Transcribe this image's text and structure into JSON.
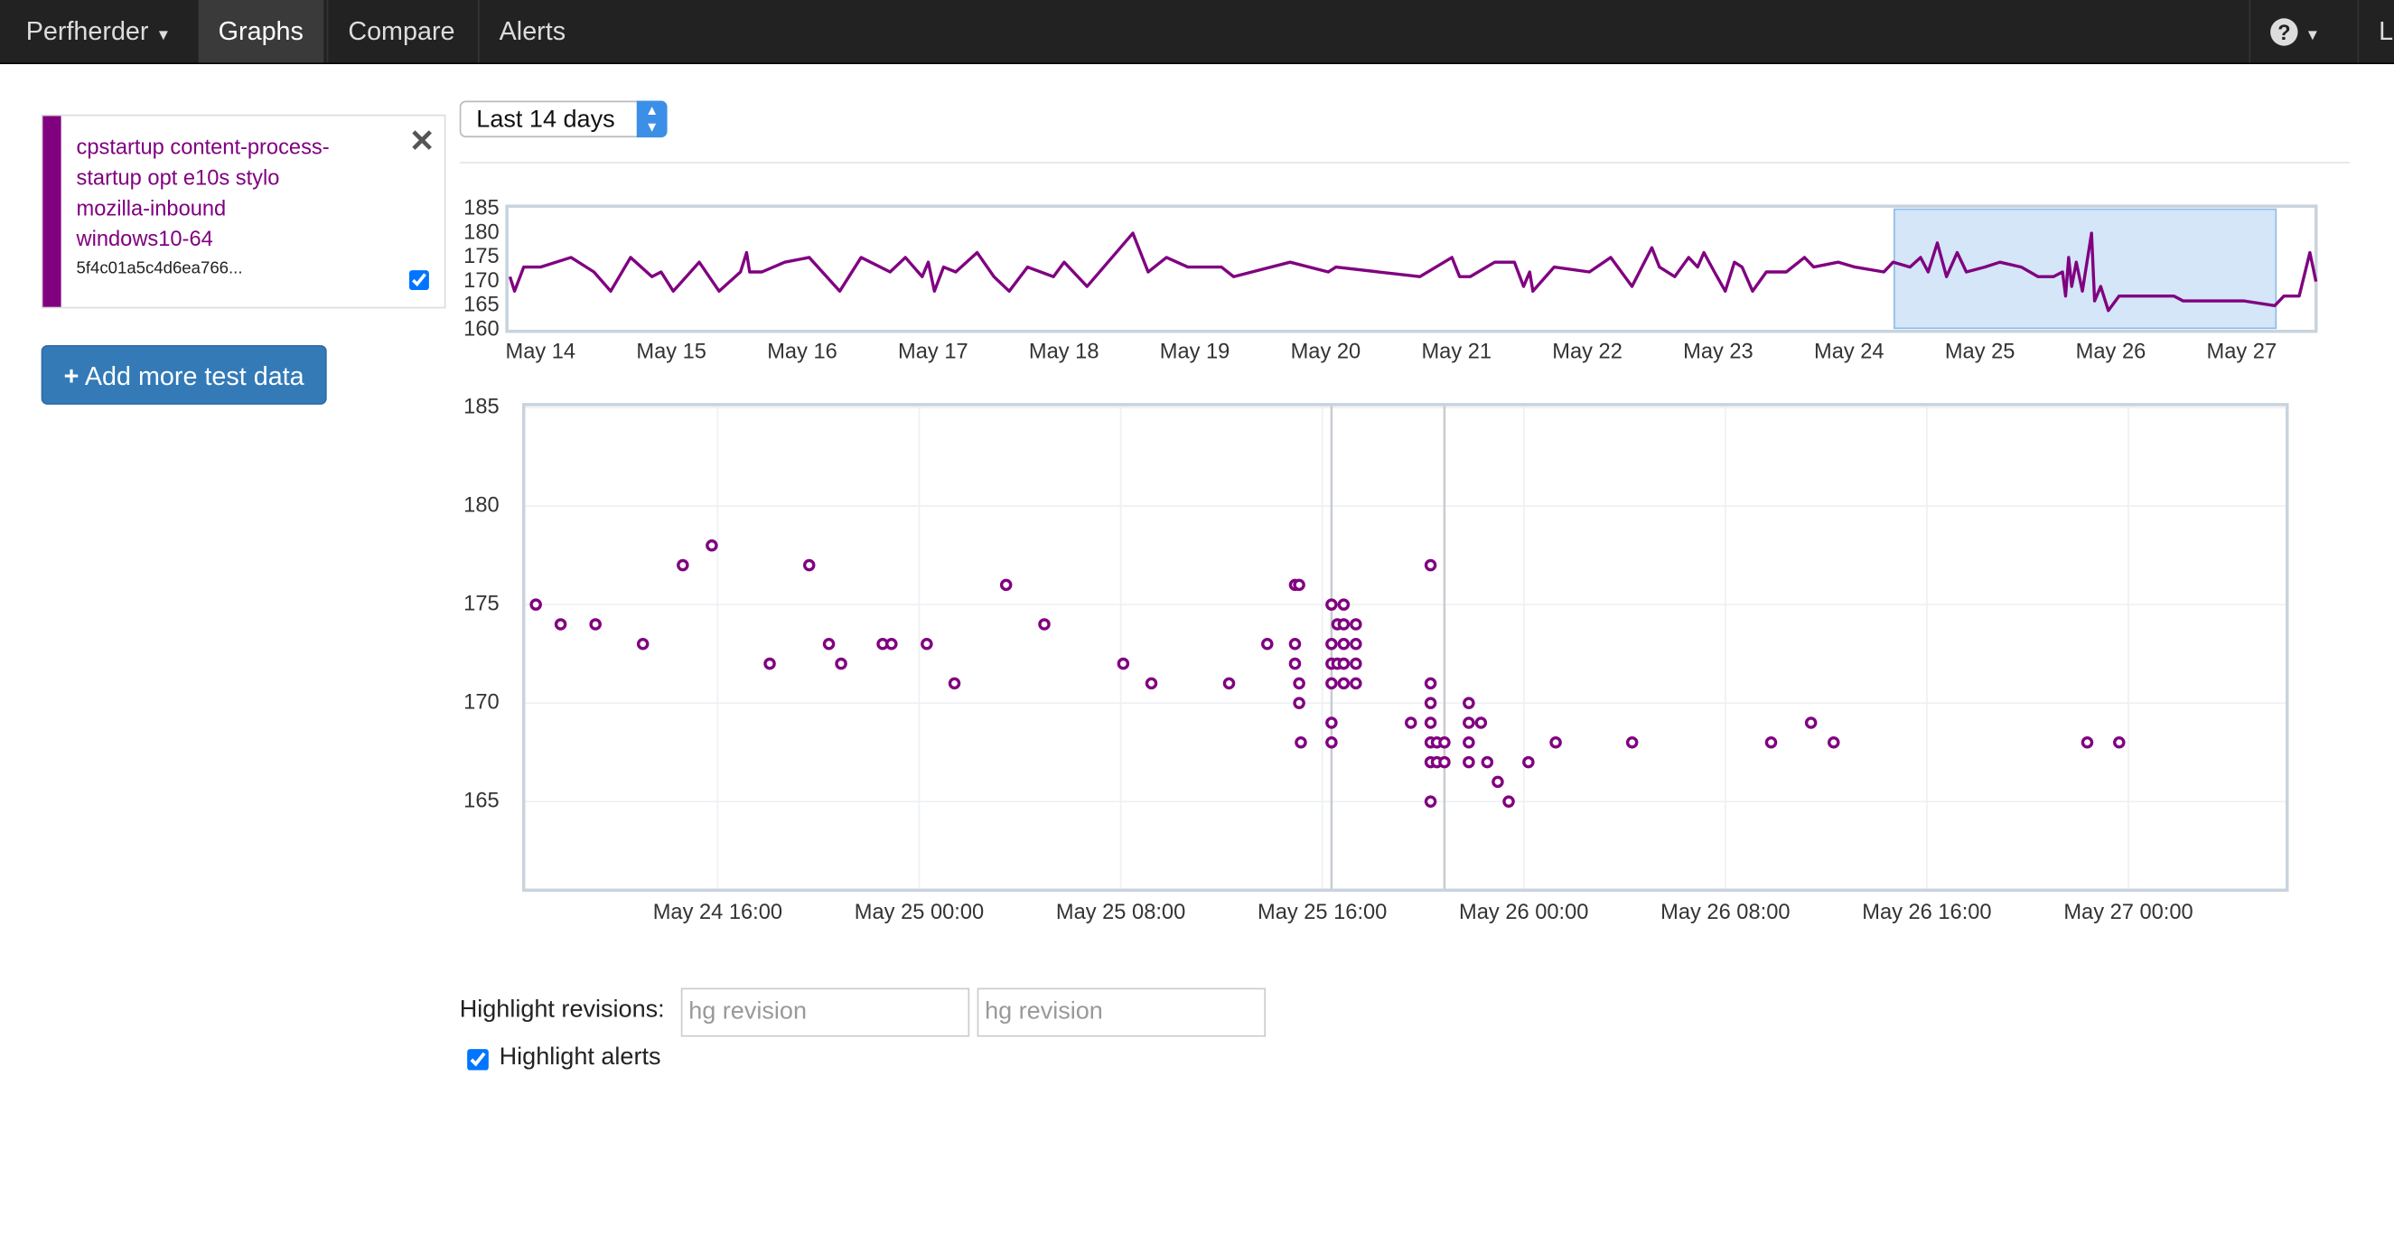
{
  "nav": {
    "brand": "Perfherder",
    "items": [
      "Graphs",
      "Compare",
      "Alerts"
    ],
    "user": "L"
  },
  "series_panel": {
    "lines": [
      "cpstartup content-process-startup opt e10s stylo",
      "mozilla-inbound",
      "windows10-64"
    ],
    "revision": "5f4c01a5c4d6ea766...",
    "visible": true
  },
  "add_button": "Add more test data",
  "time_range": "Last 14 days",
  "highlight": {
    "label": "Highlight revisions:",
    "placeholders": [
      "hg revision",
      "hg revision"
    ],
    "alerts_label": "Highlight alerts",
    "alerts_checked": true
  },
  "chart_data": [
    {
      "type": "line",
      "color": "#800080",
      "x": [
        "May 13 18:24",
        "May 13 19:14",
        "May 13 20:55",
        "May 14 00:00",
        "May 14 05:36",
        "May 14 09:48",
        "May 14 12:53",
        "May 14 16:31",
        "May 14 20:26",
        "May 14 22:07",
        "May 15 00:22",
        "May 15 05:07",
        "May 15 08:46",
        "May 15 12:41",
        "May 15 13:48",
        "May 15 14:22",
        "May 15 16:36",
        "May 15 20:48",
        "May 16 01:17",
        "May 16 06:53",
        "May 16 10:48",
        "May 16 16:07",
        "May 16 18:55",
        "May 16 22:00",
        "May 16 23:07",
        "May 17 00:14",
        "May 17 01:55",
        "May 17 04:10",
        "May 17 08:05",
        "May 17 11:10",
        "May 17 13:58",
        "May 17 17:19",
        "May 17 22:05",
        "May 18 00:02",
        "May 18 04:14",
        "May 18 12:38",
        "May 18 15:26",
        "May 18 18:48",
        "May 18 22:43",
        "May 19 04:53",
        "May 19 07:07",
        "May 19 17:29",
        "May 20 00:29",
        "May 20 01:53",
        "May 20 17:17",
        "May 20 23:10",
        "May 21 00:34",
        "May 21 02:31",
        "May 21 07:00",
        "May 21 10:38",
        "May 21 12:19",
        "May 21 13:26",
        "May 21 14:00",
        "May 21 17:55",
        "May 22 00:22",
        "May 22 04:17",
        "May 22 08:12",
        "May 22 11:50",
        "May 22 13:14",
        "May 22 16:02",
        "May 22 18:34",
        "May 22 20:14",
        "May 22 21:22",
        "May 22 23:19",
        "May 23 01:17",
        "May 23 02:58",
        "May 23 04:22",
        "May 23 06:19",
        "May 23 08:50",
        "May 23 12:29",
        "May 23 15:50",
        "May 23 17:31",
        "May 23 22:00",
        "May 24 01:05",
        "May 24 06:24",
        "May 24 08:05",
        "May 24 11:10",
        "May 24 13:07",
        "May 24 14:31",
        "May 24 16:12",
        "May 24 17:53",
        "May 24 19:50",
        "May 24 21:31",
        "May 25 00:53",
        "May 25 03:41",
        "May 25 07:36",
        "May 25 10:41",
        "May 25 13:29",
        "May 25 15:10",
        "May 25 15:43",
        "May 25 16:17",
        "May 25 16:50",
        "May 25 17:41",
        "May 25 18:48",
        "May 25 20:29",
        "May 25 21:02",
        "May 25 22:10",
        "May 25 23:34",
        "May 26 01:31",
        "May 26 11:36",
        "May 26 13:17",
        "May 27 00:29",
        "May 27 06:05",
        "May 27 07:46",
        "May 27 10:34",
        "May 27 12:31",
        "May 27 13:38"
      ],
      "values": [
        171,
        168,
        173,
        173,
        175,
        172,
        168,
        175,
        171,
        172,
        168,
        174,
        168,
        172,
        176,
        172,
        172,
        174,
        175,
        168,
        175,
        172,
        175,
        171,
        174,
        168,
        173,
        172,
        176,
        171,
        168,
        173,
        171,
        174,
        169,
        180,
        172,
        175,
        173,
        173,
        171,
        174,
        172,
        173,
        171,
        175,
        171,
        171,
        174,
        174,
        169,
        172,
        168,
        173,
        172,
        175,
        169,
        177,
        173,
        171,
        175,
        173,
        176,
        172,
        168,
        174,
        173,
        168,
        172,
        172,
        175,
        173,
        174,
        173,
        172,
        174,
        173,
        175,
        172,
        178,
        171,
        176,
        172,
        173,
        174,
        173,
        171,
        171,
        172,
        167,
        175,
        169,
        174,
        168,
        180,
        166,
        169,
        164,
        167,
        167,
        166,
        166,
        165,
        167,
        167,
        176,
        170
      ],
      "xlim": [
        "May 13 17:50",
        "May 27 13:40"
      ],
      "xticks": [
        "May 14",
        "May 15",
        "May 16",
        "May 17",
        "May 18",
        "May 19",
        "May 20",
        "May 21",
        "May 22",
        "May 23",
        "May 24",
        "May 25",
        "May 26",
        "May 27"
      ],
      "ylim": [
        159.7,
        185.6
      ],
      "yticks": [
        160,
        165,
        170,
        175,
        180,
        185
      ]
    },
    {
      "type": "scatter",
      "color": "#800080",
      "x": [
        "May 24 08:47",
        "May 24 09:46",
        "May 24 11:09",
        "May 24 13:02",
        "May 24 14:37",
        "May 24 15:46",
        "May 24 18:04",
        "May 24 19:38",
        "May 24 20:25",
        "May 24 20:54",
        "May 24 22:33",
        "May 24 22:54",
        "May 25 00:18",
        "May 25 01:24",
        "May 25 03:27",
        "May 25 04:58",
        "May 25 08:06",
        "May 25 09:13",
        "May 25 12:18",
        "May 25 13:49",
        "May 25 14:55",
        "May 25 15:05",
        "May 25 14:55",
        "May 25 14:55",
        "May 25 15:05",
        "May 25 15:05",
        "May 25 15:09",
        "May 25 16:22",
        "May 25 16:51",
        "May 25 16:36",
        "May 25 16:51",
        "May 25 17:20",
        "May 25 16:22",
        "May 25 16:51",
        "May 25 17:20",
        "May 25 16:22",
        "May 25 16:36",
        "May 25 16:51",
        "May 25 17:20",
        "May 25 16:22",
        "May 25 16:51",
        "May 25 17:20",
        "May 25 16:22",
        "May 25 16:22",
        "May 25 19:31",
        "May 25 20:18",
        "May 25 20:18",
        "May 25 20:18",
        "May 25 20:18",
        "May 25 20:18",
        "May 25 20:18",
        "May 25 20:18",
        "May 25 20:33",
        "May 25 20:33",
        "May 25 20:51",
        "May 25 20:51",
        "May 25 21:49",
        "May 25 21:49",
        "May 25 21:49",
        "May 25 21:49",
        "May 25 22:18",
        "May 25 22:33",
        "May 25 22:58",
        "May 25 23:24",
        "May 26 00:11",
        "May 26 01:16",
        "May 26 04:18",
        "May 26 09:49",
        "May 26 11:24",
        "May 26 12:18",
        "May 26 22:22",
        "May 26 23:38"
      ],
      "values": [
        175,
        174,
        174,
        173,
        177,
        178,
        172,
        177,
        173,
        172,
        173,
        173,
        173,
        171,
        176,
        174,
        172,
        171,
        171,
        173,
        176,
        176,
        173,
        172,
        171,
        170,
        168,
        175,
        175,
        174,
        174,
        174,
        173,
        173,
        173,
        172,
        172,
        172,
        172,
        171,
        171,
        171,
        169,
        168,
        169,
        177,
        171,
        170,
        169,
        168,
        167,
        165,
        168,
        167,
        168,
        167,
        170,
        169,
        168,
        167,
        169,
        167,
        166,
        165,
        167,
        168,
        168,
        168,
        169,
        168,
        168,
        168
      ],
      "xlim": [
        "May 24 08:18",
        "May 27 06:18"
      ],
      "xticks": [
        "May 24 16:00",
        "May 25 00:00",
        "May 25 08:00",
        "May 25 16:00",
        "May 26 00:00",
        "May 26 08:00",
        "May 26 16:00",
        "May 27 00:00"
      ],
      "ylim": [
        160.5,
        185.15
      ],
      "yticks": [
        165,
        170,
        175,
        180,
        185
      ],
      "grid": true,
      "vlines": [
        "May 25 16:22",
        "May 25 20:51"
      ]
    }
  ]
}
